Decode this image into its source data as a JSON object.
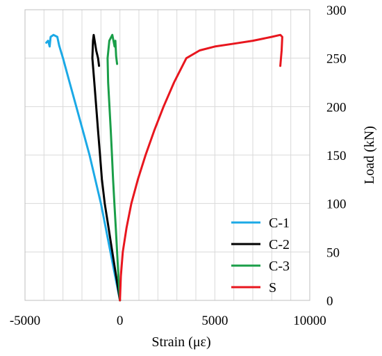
{
  "chart_data": {
    "type": "line",
    "xlabel": "Strain (με)",
    "ylabel": "Load (kN)",
    "xlim": [
      -5000,
      10000
    ],
    "ylim": [
      0,
      300
    ],
    "x_ticks": [
      -5000,
      0,
      5000,
      10000
    ],
    "y_ticks": [
      0,
      50,
      100,
      150,
      200,
      250,
      300
    ],
    "x_minor_step": 1000,
    "y_axis_side": "right",
    "grid": true,
    "legend_position": "bottom-right",
    "series": [
      {
        "name": "C-1",
        "color": "#1ba9e6",
        "points": [
          [
            0,
            0
          ],
          [
            -250,
            25
          ],
          [
            -500,
            50
          ],
          [
            -750,
            75
          ],
          [
            -1000,
            100
          ],
          [
            -1300,
            125
          ],
          [
            -1600,
            150
          ],
          [
            -1950,
            175
          ],
          [
            -2300,
            200
          ],
          [
            -2650,
            225
          ],
          [
            -3000,
            250
          ],
          [
            -3200,
            263
          ],
          [
            -3300,
            272
          ],
          [
            -3500,
            274
          ],
          [
            -3650,
            272
          ],
          [
            -3700,
            262
          ],
          [
            -3780,
            268
          ],
          [
            -3880,
            266
          ]
        ]
      },
      {
        "name": "C-2",
        "color": "#000000",
        "points": [
          [
            0,
            0
          ],
          [
            -200,
            25
          ],
          [
            -400,
            50
          ],
          [
            -600,
            75
          ],
          [
            -800,
            100
          ],
          [
            -950,
            125
          ],
          [
            -1050,
            150
          ],
          [
            -1150,
            175
          ],
          [
            -1250,
            200
          ],
          [
            -1350,
            225
          ],
          [
            -1450,
            250
          ],
          [
            -1420,
            268
          ],
          [
            -1380,
            274
          ],
          [
            -1330,
            268
          ],
          [
            -1250,
            258
          ],
          [
            -1150,
            250
          ],
          [
            -1100,
            242
          ]
        ]
      },
      {
        "name": "C-3",
        "color": "#1a9e48",
        "points": [
          [
            0,
            0
          ],
          [
            -80,
            25
          ],
          [
            -150,
            50
          ],
          [
            -220,
            75
          ],
          [
            -290,
            100
          ],
          [
            -360,
            125
          ],
          [
            -420,
            150
          ],
          [
            -480,
            175
          ],
          [
            -550,
            200
          ],
          [
            -620,
            225
          ],
          [
            -650,
            250
          ],
          [
            -560,
            268
          ],
          [
            -400,
            274
          ],
          [
            -280,
            262
          ],
          [
            -240,
            268
          ],
          [
            -200,
            252
          ],
          [
            -150,
            244
          ]
        ]
      },
      {
        "name": "S",
        "color": "#e8161e",
        "points": [
          [
            0,
            0
          ],
          [
            50,
            25
          ],
          [
            150,
            50
          ],
          [
            350,
            75
          ],
          [
            600,
            100
          ],
          [
            950,
            125
          ],
          [
            1350,
            150
          ],
          [
            1800,
            175
          ],
          [
            2300,
            200
          ],
          [
            2850,
            225
          ],
          [
            3500,
            250
          ],
          [
            4200,
            258
          ],
          [
            5000,
            262
          ],
          [
            6000,
            265
          ],
          [
            7000,
            268
          ],
          [
            8000,
            272
          ],
          [
            8450,
            274
          ],
          [
            8550,
            272
          ],
          [
            8520,
            258
          ],
          [
            8450,
            242
          ]
        ]
      }
    ]
  }
}
